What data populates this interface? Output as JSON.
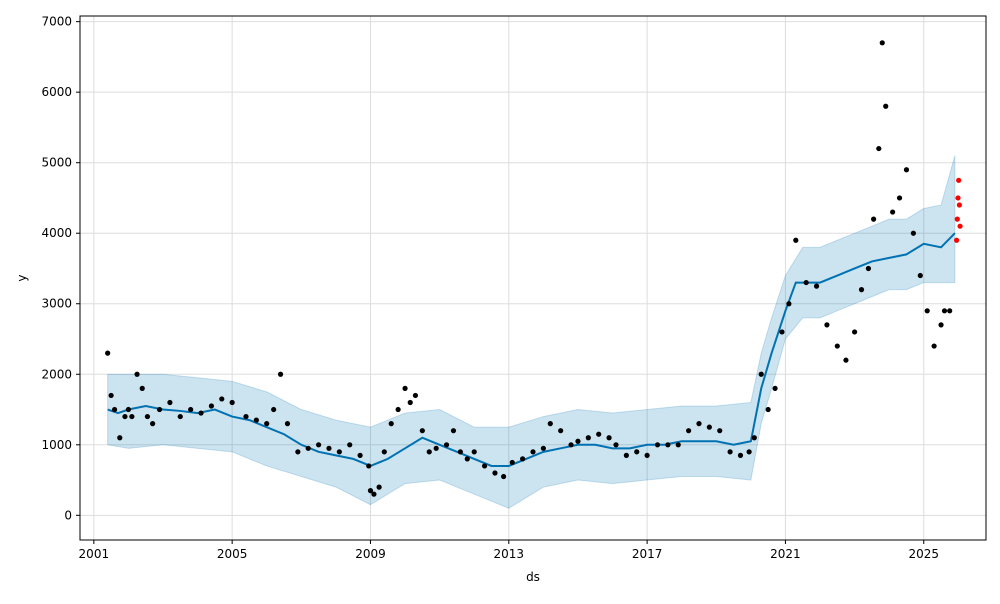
{
  "chart_data": {
    "type": "line",
    "title": "",
    "xlabel": "ds",
    "ylabel": "y",
    "grid": true,
    "legend": "none",
    "xlim": [
      2000.6,
      2026.8
    ],
    "ylim": [
      -350,
      7080
    ],
    "x_ticks": [
      2001,
      2005,
      2009,
      2013,
      2017,
      2021,
      2025
    ],
    "x_tick_labels": [
      "2001",
      "2005",
      "2009",
      "2013",
      "2017",
      "2021",
      "2025"
    ],
    "y_ticks": [
      0,
      1000,
      2000,
      3000,
      4000,
      5000,
      6000,
      7000
    ],
    "y_tick_labels": [
      "0",
      "1000",
      "2000",
      "3000",
      "4000",
      "5000",
      "6000",
      "7000"
    ],
    "colors": {
      "observed": "#000000",
      "forecast_line": "#0072B2",
      "uncertainty_band": "#0072B2",
      "test_points": "#ff0000",
      "grid": "#dddddd"
    },
    "series": [
      {
        "kind": "observed",
        "x": [
          2001.4,
          2001.5,
          2001.6,
          2001.75,
          2001.9,
          2002.0,
          2002.1,
          2002.25,
          2002.4,
          2002.55,
          2002.7,
          2002.9,
          2003.2,
          2003.5,
          2003.8,
          2004.1,
          2004.4,
          2004.7,
          2005.0,
          2005.4,
          2005.7,
          2006.0,
          2006.2,
          2006.4,
          2006.6,
          2006.9,
          2007.2,
          2007.5,
          2007.8,
          2008.1,
          2008.4,
          2008.7,
          2008.95,
          2009.0,
          2009.1,
          2009.25,
          2009.4,
          2009.6,
          2009.8,
          2010.0,
          2010.15,
          2010.3,
          2010.5,
          2010.7,
          2010.9,
          2011.2,
          2011.4,
          2011.6,
          2011.8,
          2012.0,
          2012.3,
          2012.6,
          2012.85,
          2013.1,
          2013.4,
          2013.7,
          2014.0,
          2014.2,
          2014.5,
          2014.8,
          2015.0,
          2015.3,
          2015.6,
          2015.9,
          2016.1,
          2016.4,
          2016.7,
          2017.0,
          2017.3,
          2017.6,
          2017.9,
          2018.2,
          2018.5,
          2018.8,
          2019.1,
          2019.4,
          2019.7,
          2019.95,
          2020.1,
          2020.3,
          2020.5,
          2020.7,
          2020.9,
          2021.1,
          2021.3,
          2021.6,
          2021.9,
          2022.2,
          2022.5,
          2022.75,
          2023.0,
          2023.2,
          2023.4,
          2023.55,
          2023.7,
          2023.8,
          2023.9,
          2024.1,
          2024.3,
          2024.5,
          2024.7,
          2024.9,
          2025.1,
          2025.3,
          2025.5,
          2025.6,
          2025.75
        ],
        "y": [
          2300,
          1700,
          1500,
          1100,
          1400,
          1500,
          1400,
          2000,
          1800,
          1400,
          1300,
          1500,
          1600,
          1400,
          1500,
          1450,
          1550,
          1650,
          1600,
          1400,
          1350,
          1300,
          1500,
          2000,
          1300,
          900,
          950,
          1000,
          950,
          900,
          1000,
          850,
          700,
          350,
          300,
          400,
          900,
          1300,
          1500,
          1800,
          1600,
          1700,
          1200,
          900,
          950,
          1000,
          1200,
          900,
          800,
          900,
          700,
          600,
          550,
          750,
          800,
          900,
          950,
          1300,
          1200,
          1000,
          1050,
          1100,
          1150,
          1100,
          1000,
          850,
          900,
          850,
          1000,
          1000,
          1000,
          1200,
          1300,
          1250,
          1200,
          900,
          850,
          900,
          1100,
          2000,
          1500,
          1800,
          2600,
          3000,
          3900,
          3300,
          3250,
          2700,
          2400,
          2200,
          2600,
          3200,
          3500,
          4200,
          5200,
          6700,
          5800,
          4300,
          4500,
          4900,
          4000,
          3400,
          2900,
          2400,
          2700,
          2900,
          2900
        ]
      },
      {
        "kind": "forecast_trend",
        "x": [
          2001.4,
          2001.7,
          2002.0,
          2002.5,
          2003.0,
          2003.5,
          2004.0,
          2004.5,
          2005.0,
          2005.5,
          2006.0,
          2006.5,
          2007.0,
          2007.5,
          2008.0,
          2008.5,
          2009.0,
          2009.5,
          2010.0,
          2010.5,
          2011.0,
          2011.5,
          2012.0,
          2012.5,
          2013.0,
          2013.5,
          2014.0,
          2014.5,
          2015.0,
          2015.5,
          2016.0,
          2016.5,
          2017.0,
          2017.5,
          2018.0,
          2018.5,
          2019.0,
          2019.5,
          2020.0,
          2020.3,
          2020.6,
          2021.0,
          2021.3,
          2021.6,
          2022.0,
          2022.5,
          2023.0,
          2023.5,
          2024.0,
          2024.5,
          2025.0,
          2025.5,
          2025.9
        ],
        "y": [
          1500,
          1450,
          1500,
          1550,
          1500,
          1480,
          1450,
          1500,
          1400,
          1350,
          1250,
          1150,
          1000,
          900,
          850,
          800,
          700,
          800,
          950,
          1100,
          1000,
          900,
          800,
          700,
          700,
          800,
          900,
          950,
          1000,
          1000,
          950,
          950,
          1000,
          1000,
          1050,
          1050,
          1050,
          1000,
          1050,
          1800,
          2300,
          2900,
          3300,
          3300,
          3300,
          3400,
          3500,
          3600,
          3650,
          3700,
          3850,
          3800,
          4000
        ]
      },
      {
        "kind": "uncertainty_upper",
        "x": [
          2001.4,
          2002.0,
          2003.0,
          2004.0,
          2005.0,
          2006.0,
          2007.0,
          2008.0,
          2009.0,
          2010.0,
          2011.0,
          2012.0,
          2013.0,
          2014.0,
          2015.0,
          2016.0,
          2017.0,
          2018.0,
          2019.0,
          2020.0,
          2020.3,
          2020.6,
          2021.0,
          2021.5,
          2022.0,
          2022.5,
          2023.0,
          2023.5,
          2024.0,
          2024.5,
          2025.0,
          2025.5,
          2025.9
        ],
        "y": [
          2000,
          2000,
          2000,
          1950,
          1900,
          1750,
          1500,
          1350,
          1250,
          1450,
          1500,
          1250,
          1250,
          1400,
          1500,
          1450,
          1500,
          1550,
          1550,
          1600,
          2300,
          2800,
          3400,
          3800,
          3800,
          3900,
          4000,
          4100,
          4200,
          4200,
          4350,
          4400,
          5100
        ]
      },
      {
        "kind": "uncertainty_lower",
        "x": [
          2001.4,
          2002.0,
          2003.0,
          2004.0,
          2005.0,
          2006.0,
          2007.0,
          2008.0,
          2009.0,
          2010.0,
          2011.0,
          2012.0,
          2013.0,
          2014.0,
          2015.0,
          2016.0,
          2017.0,
          2018.0,
          2019.0,
          2020.0,
          2020.3,
          2020.6,
          2021.0,
          2021.5,
          2022.0,
          2022.5,
          2023.0,
          2023.5,
          2024.0,
          2024.5,
          2025.0,
          2025.5,
          2025.9
        ],
        "y": [
          1000,
          950,
          1000,
          950,
          900,
          700,
          550,
          400,
          150,
          450,
          500,
          300,
          100,
          400,
          500,
          450,
          500,
          550,
          550,
          500,
          1300,
          1800,
          2500,
          2800,
          2800,
          2900,
          3000,
          3100,
          3200,
          3200,
          3300,
          3300,
          3300
        ]
      },
      {
        "kind": "test_points",
        "x": [
          2025.95,
          2025.97,
          2025.99,
          2026.01,
          2026.03,
          2026.05
        ],
        "y": [
          3900,
          4200,
          4500,
          4750,
          4400,
          4100
        ]
      }
    ]
  }
}
